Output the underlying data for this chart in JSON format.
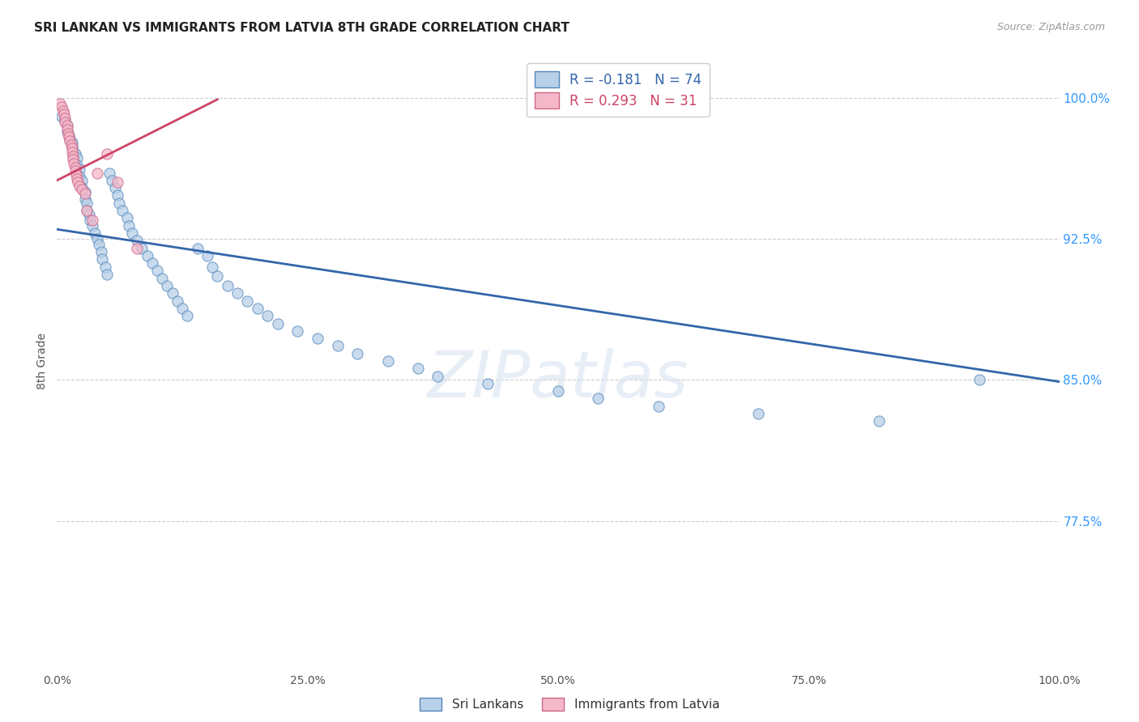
{
  "title": "SRI LANKAN VS IMMIGRANTS FROM LATVIA 8TH GRADE CORRELATION CHART",
  "source": "Source: ZipAtlas.com",
  "ylabel": "8th Grade",
  "blue_R": "-0.181",
  "blue_N": "74",
  "pink_R": "0.293",
  "pink_N": "31",
  "blue_fill_color": "#b8d0e8",
  "pink_fill_color": "#f4b8c8",
  "blue_edge_color": "#5588bb",
  "pink_edge_color": "#cc6688",
  "blue_line_color": "#3366aa",
  "pink_line_color": "#cc4466",
  "ytick_labels": [
    "77.5%",
    "85.0%",
    "92.5%",
    "100.0%"
  ],
  "ytick_values": [
    0.775,
    0.85,
    0.925,
    1.0
  ],
  "xlim": [
    0.0,
    1.0
  ],
  "ylim": [
    0.695,
    1.025
  ],
  "blue_line_x": [
    0.0,
    1.0
  ],
  "blue_line_y": [
    0.93,
    0.849
  ],
  "pink_line_x": [
    0.0,
    0.16
  ],
  "pink_line_y": [
    0.956,
    0.999
  ],
  "blue_scatter_x": [
    0.005,
    0.008,
    0.01,
    0.01,
    0.012,
    0.013,
    0.015,
    0.015,
    0.016,
    0.018,
    0.02,
    0.02,
    0.022,
    0.022,
    0.025,
    0.025,
    0.028,
    0.028,
    0.03,
    0.03,
    0.032,
    0.033,
    0.035,
    0.038,
    0.04,
    0.042,
    0.044,
    0.045,
    0.048,
    0.05,
    0.052,
    0.055,
    0.058,
    0.06,
    0.062,
    0.065,
    0.07,
    0.072,
    0.075,
    0.08,
    0.085,
    0.09,
    0.095,
    0.1,
    0.105,
    0.11,
    0.115,
    0.12,
    0.125,
    0.13,
    0.14,
    0.15,
    0.155,
    0.16,
    0.17,
    0.18,
    0.19,
    0.2,
    0.21,
    0.22,
    0.24,
    0.26,
    0.28,
    0.3,
    0.33,
    0.36,
    0.38,
    0.43,
    0.5,
    0.54,
    0.6,
    0.7,
    0.82,
    0.92
  ],
  "blue_scatter_y": [
    0.99,
    0.988,
    0.985,
    0.982,
    0.98,
    0.978,
    0.976,
    0.974,
    0.972,
    0.97,
    0.968,
    0.964,
    0.962,
    0.958,
    0.956,
    0.952,
    0.95,
    0.946,
    0.944,
    0.94,
    0.938,
    0.935,
    0.932,
    0.928,
    0.925,
    0.922,
    0.918,
    0.914,
    0.91,
    0.906,
    0.96,
    0.956,
    0.952,
    0.948,
    0.944,
    0.94,
    0.936,
    0.932,
    0.928,
    0.924,
    0.92,
    0.916,
    0.912,
    0.908,
    0.904,
    0.9,
    0.896,
    0.892,
    0.888,
    0.884,
    0.92,
    0.916,
    0.91,
    0.905,
    0.9,
    0.896,
    0.892,
    0.888,
    0.884,
    0.88,
    0.876,
    0.872,
    0.868,
    0.864,
    0.86,
    0.856,
    0.852,
    0.848,
    0.844,
    0.84,
    0.836,
    0.832,
    0.828,
    0.85
  ],
  "pink_scatter_x": [
    0.003,
    0.005,
    0.006,
    0.007,
    0.008,
    0.008,
    0.01,
    0.01,
    0.011,
    0.012,
    0.013,
    0.014,
    0.015,
    0.015,
    0.016,
    0.016,
    0.017,
    0.018,
    0.018,
    0.019,
    0.02,
    0.021,
    0.022,
    0.025,
    0.028,
    0.03,
    0.035,
    0.04,
    0.05,
    0.06,
    0.08
  ],
  "pink_scatter_y": [
    0.997,
    0.995,
    0.993,
    0.991,
    0.989,
    0.987,
    0.985,
    0.983,
    0.981,
    0.979,
    0.977,
    0.975,
    0.973,
    0.971,
    0.969,
    0.967,
    0.965,
    0.963,
    0.961,
    0.959,
    0.957,
    0.955,
    0.953,
    0.951,
    0.949,
    0.94,
    0.935,
    0.96,
    0.97,
    0.955,
    0.92
  ],
  "watermark_text": "ZIPatlas"
}
